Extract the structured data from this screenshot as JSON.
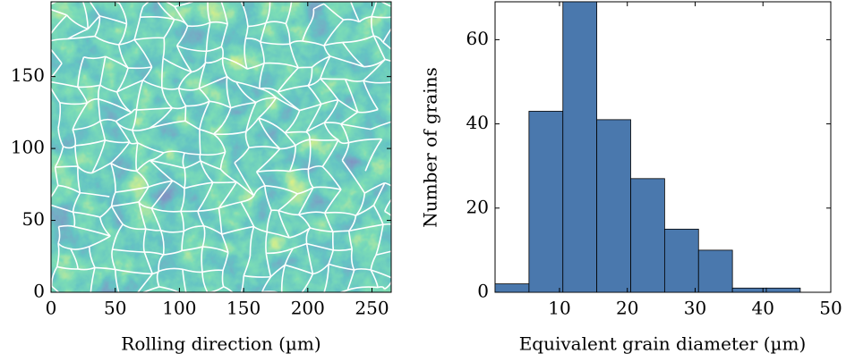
{
  "chart_data": [
    {
      "type": "image",
      "xlabel": "Rolling direction (µm)",
      "xlim": [
        0,
        265
      ],
      "xticks": [
        0,
        50,
        100,
        150,
        200,
        250
      ],
      "ylim": [
        0,
        202
      ],
      "yticks": [
        0,
        50,
        100,
        150
      ]
    },
    {
      "type": "histogram",
      "xlabel": "Equivalent grain diameter (µm)",
      "ylabel": "Number of grains",
      "bins": [
        0.5,
        5.5,
        10.5,
        15.5,
        20.5,
        25.5,
        30.5,
        35.5,
        40.5,
        45.5
      ],
      "values": [
        2,
        43,
        69,
        41,
        27,
        15,
        10,
        1,
        1
      ],
      "color": "#4a78ad",
      "xlim": [
        0.5,
        50
      ],
      "xticks": [
        10,
        20,
        30,
        40,
        50
      ],
      "ylim": [
        0,
        69
      ],
      "yticks": [
        0,
        20,
        40,
        60
      ]
    }
  ]
}
